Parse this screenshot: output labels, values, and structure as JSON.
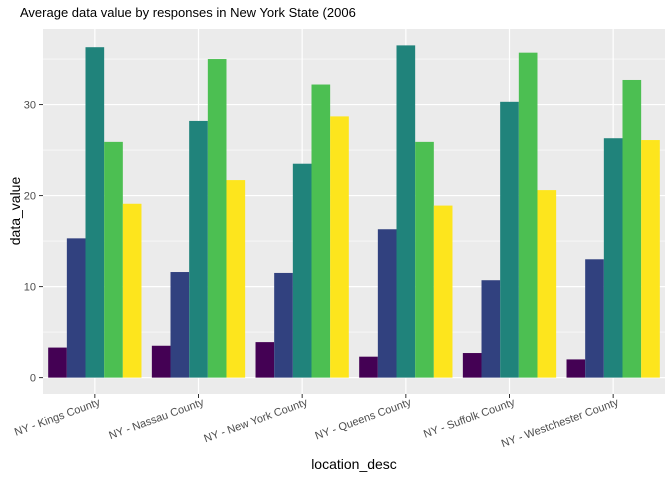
{
  "chart_data": {
    "type": "bar",
    "title": "Average data value by responses in New York State (2006",
    "xlabel": "location_desc",
    "ylabel": "data_value",
    "categories": [
      "NY - Kings County",
      "NY - Nassau County",
      "NY - New York County",
      "NY - Queens County",
      "NY - Suffolk County",
      "NY - Westchester County"
    ],
    "series": [
      {
        "values": [
          3.3,
          3.5,
          3.9,
          2.3,
          2.7,
          2.0
        ]
      },
      {
        "values": [
          15.3,
          11.6,
          11.5,
          16.3,
          10.7,
          13.0
        ]
      },
      {
        "values": [
          36.3,
          28.2,
          23.5,
          36.5,
          30.3,
          26.3
        ]
      },
      {
        "values": [
          25.9,
          35.0,
          32.2,
          25.9,
          35.7,
          32.7
        ]
      },
      {
        "values": [
          19.1,
          21.7,
          28.7,
          18.9,
          20.6,
          26.1
        ]
      }
    ],
    "colors": [
      "#440154",
      "#31417f",
      "#20837b",
      "#4cbf52",
      "#fde51d"
    ],
    "ylim": [
      -1.8,
      38.3
    ],
    "yticks": [
      0,
      10,
      20,
      30
    ],
    "ytick_labels": [
      "0",
      "10",
      "20",
      "30"
    ],
    "grid": true,
    "legend": "none",
    "panel_background": "#ebebeb",
    "grid_color": "#ffffff"
  }
}
